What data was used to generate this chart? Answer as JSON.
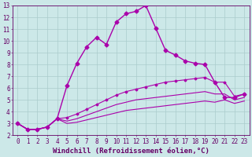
{
  "xlabel": "Windchill (Refroidissement éolien,°C)",
  "background_color": "#cce8e8",
  "grid_color": "#aacccc",
  "line_color": "#aa00aa",
  "xlim": [
    -0.5,
    23.5
  ],
  "ylim": [
    2,
    13
  ],
  "xticks": [
    0,
    1,
    2,
    3,
    4,
    5,
    6,
    7,
    8,
    9,
    10,
    11,
    12,
    13,
    14,
    15,
    16,
    17,
    18,
    19,
    20,
    21,
    22,
    23
  ],
  "yticks": [
    2,
    3,
    4,
    5,
    6,
    7,
    8,
    9,
    10,
    11,
    12,
    13
  ],
  "lines": [
    {
      "x": [
        0,
        1,
        2,
        3,
        4,
        5,
        6,
        7,
        8,
        9,
        10,
        11,
        12,
        13,
        14,
        15,
        16,
        17,
        18,
        19,
        20,
        21,
        22,
        23
      ],
      "y": [
        3.0,
        2.5,
        2.5,
        2.7,
        3.4,
        6.2,
        8.1,
        9.5,
        10.3,
        9.7,
        11.6,
        12.3,
        12.5,
        13.0,
        11.1,
        9.2,
        8.8,
        8.3,
        8.1,
        8.0,
        6.5,
        5.2,
        5.2,
        5.5
      ],
      "marker": "D",
      "markersize": 2.5,
      "linewidth": 1.0
    },
    {
      "x": [
        0,
        1,
        2,
        3,
        4,
        5,
        6,
        7,
        8,
        9,
        10,
        11,
        12,
        13,
        14,
        15,
        16,
        17,
        18,
        19,
        20,
        21,
        22,
        23
      ],
      "y": [
        3.0,
        2.5,
        2.5,
        2.7,
        3.4,
        3.5,
        3.8,
        4.2,
        4.6,
        5.0,
        5.4,
        5.7,
        5.9,
        6.1,
        6.3,
        6.5,
        6.6,
        6.7,
        6.8,
        6.9,
        6.5,
        6.5,
        5.3,
        5.5
      ],
      "marker": "D",
      "markersize": 1.5,
      "linewidth": 0.8
    },
    {
      "x": [
        0,
        1,
        2,
        3,
        4,
        5,
        6,
        7,
        8,
        9,
        10,
        11,
        12,
        13,
        14,
        15,
        16,
        17,
        18,
        19,
        20,
        21,
        22,
        23
      ],
      "y": [
        3.0,
        2.5,
        2.5,
        2.7,
        3.4,
        3.2,
        3.4,
        3.7,
        4.0,
        4.3,
        4.6,
        4.8,
        5.0,
        5.1,
        5.2,
        5.3,
        5.4,
        5.5,
        5.6,
        5.7,
        5.5,
        5.5,
        5.0,
        5.2
      ],
      "marker": null,
      "markersize": 0,
      "linewidth": 0.8
    },
    {
      "x": [
        0,
        1,
        2,
        3,
        4,
        5,
        6,
        7,
        8,
        9,
        10,
        11,
        12,
        13,
        14,
        15,
        16,
        17,
        18,
        19,
        20,
        21,
        22,
        23
      ],
      "y": [
        3.0,
        2.5,
        2.5,
        2.7,
        3.4,
        3.0,
        3.1,
        3.3,
        3.5,
        3.7,
        3.9,
        4.1,
        4.2,
        4.3,
        4.4,
        4.5,
        4.6,
        4.7,
        4.8,
        4.9,
        4.8,
        5.0,
        4.7,
        4.9
      ],
      "marker": null,
      "markersize": 0,
      "linewidth": 0.8
    }
  ],
  "tick_fontsize": 5.5,
  "label_fontsize": 6.5,
  "label_color": "#660066",
  "tick_color": "#660066",
  "spine_color": "#660066"
}
